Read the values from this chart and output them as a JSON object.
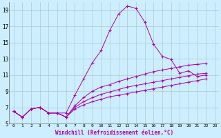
{
  "xlabel": "Windchill (Refroidissement éolien,°C)",
  "background_color": "#cceeff",
  "grid_color": "#aacccc",
  "line_color": "#aa00aa",
  "xlim": [
    -0.5,
    23.5
  ],
  "ylim": [
    5,
    20
  ],
  "xticks": [
    0,
    1,
    2,
    3,
    4,
    5,
    6,
    7,
    8,
    9,
    10,
    11,
    12,
    13,
    14,
    15,
    16,
    17,
    18,
    19,
    20,
    21,
    22,
    23
  ],
  "yticks": [
    5,
    7,
    9,
    11,
    13,
    15,
    17,
    19
  ],
  "series": [
    [
      6.5,
      5.8,
      6.8,
      7.0,
      6.3,
      6.3,
      6.3,
      8.5,
      10.5,
      12.5,
      14.0,
      16.5,
      18.5,
      19.5,
      19.2,
      17.5,
      14.8,
      13.3,
      12.9,
      11.2,
      11.5,
      10.8,
      11.0
    ],
    [
      6.5,
      5.8,
      6.8,
      7.0,
      6.3,
      6.3,
      5.8,
      7.2,
      8.2,
      9.0,
      9.5,
      9.8,
      10.2,
      10.5,
      10.8,
      11.1,
      11.4,
      11.6,
      11.8,
      12.0,
      12.2,
      12.3,
      12.4
    ],
    [
      6.5,
      5.8,
      6.8,
      7.0,
      6.3,
      6.3,
      5.8,
      7.0,
      7.7,
      8.2,
      8.6,
      8.9,
      9.2,
      9.5,
      9.7,
      9.9,
      10.1,
      10.3,
      10.5,
      10.7,
      10.9,
      11.1,
      11.2
    ],
    [
      6.5,
      5.8,
      6.8,
      7.0,
      6.3,
      6.3,
      5.8,
      6.8,
      7.3,
      7.7,
      8.0,
      8.3,
      8.5,
      8.7,
      8.9,
      9.1,
      9.3,
      9.5,
      9.7,
      9.9,
      10.1,
      10.3,
      10.5
    ]
  ]
}
